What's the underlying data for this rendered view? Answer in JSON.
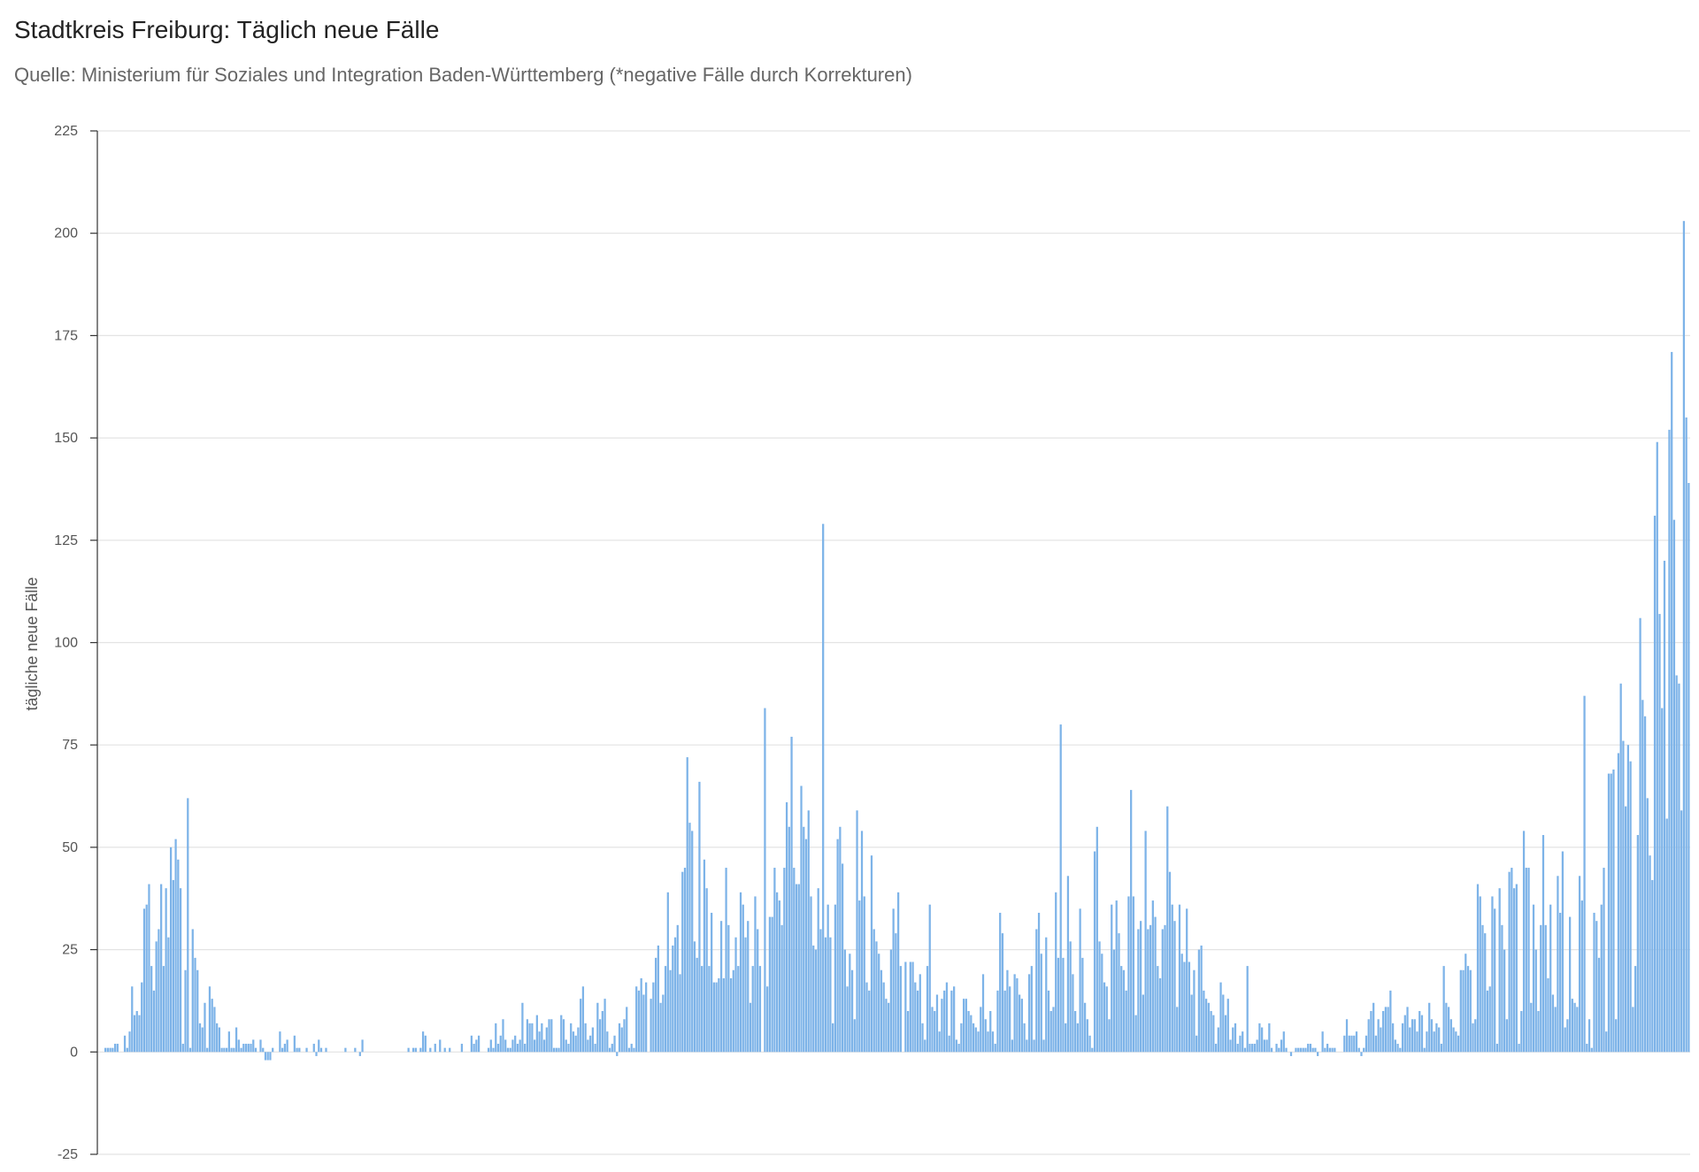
{
  "chart_data": {
    "type": "bar",
    "title": "Stadtkreis Freiburg: Täglich neue Fälle",
    "subtitle": "Quelle: Ministerium für Soziales und Integration Baden-Württemberg (*negative Fälle durch Korrekturen)",
    "ylabel": "tägliche neue Fälle",
    "xlabel": "",
    "ylim": [
      -25,
      225
    ],
    "yticks": [
      225,
      200,
      175,
      150,
      125,
      100,
      75,
      50,
      25,
      0,
      -25
    ],
    "grid": true,
    "bar_color": "#7db3e8",
    "values": [
      1,
      1,
      1,
      1,
      2,
      2,
      0,
      0,
      4,
      1,
      5,
      16,
      9,
      10,
      9,
      17,
      35,
      36,
      41,
      21,
      15,
      27,
      30,
      41,
      21,
      40,
      28,
      50,
      42,
      52,
      47,
      40,
      2,
      20,
      62,
      1,
      30,
      23,
      20,
      7,
      6,
      12,
      1,
      16,
      13,
      11,
      7,
      6,
      1,
      1,
      1,
      5,
      1,
      1,
      6,
      3,
      1,
      2,
      2,
      2,
      2,
      3,
      1,
      0,
      3,
      1,
      -2,
      -2,
      -2,
      1,
      0,
      0,
      5,
      1,
      2,
      3,
      0,
      0,
      4,
      1,
      1,
      0,
      0,
      1,
      0,
      0,
      2,
      -1,
      3,
      1,
      0,
      1,
      0,
      0,
      0,
      0,
      0,
      0,
      0,
      1,
      0,
      0,
      0,
      1,
      0,
      -1,
      3,
      0,
      0,
      0,
      0,
      0,
      0,
      0,
      0,
      0,
      0,
      0,
      0,
      0,
      0,
      0,
      0,
      0,
      0,
      1,
      0,
      1,
      1,
      0,
      1,
      5,
      4,
      0,
      1,
      0,
      2,
      0,
      3,
      0,
      1,
      0,
      1,
      0,
      0,
      0,
      0,
      2,
      0,
      0,
      0,
      4,
      2,
      3,
      4,
      0,
      0,
      0,
      1,
      3,
      1,
      7,
      2,
      4,
      8,
      3,
      1,
      1,
      3,
      4,
      2,
      3,
      12,
      2,
      8,
      7,
      7,
      3,
      9,
      5,
      7,
      3,
      6,
      8,
      8,
      1,
      1,
      1,
      9,
      8,
      3,
      2,
      7,
      5,
      4,
      6,
      13,
      16,
      7,
      3,
      4,
      6,
      2,
      12,
      8,
      10,
      13,
      5,
      1,
      2,
      4,
      -1,
      7,
      6,
      8,
      11,
      1,
      2,
      1,
      16,
      15,
      18,
      14,
      17,
      0,
      13,
      17,
      23,
      26,
      12,
      14,
      21,
      39,
      20,
      26,
      28,
      31,
      19,
      44,
      45,
      72,
      56,
      54,
      27,
      23,
      66,
      21,
      47,
      40,
      21,
      34,
      17,
      17,
      18,
      32,
      18,
      45,
      31,
      18,
      20,
      28,
      21,
      39,
      36,
      28,
      32,
      12,
      21,
      38,
      30,
      21,
      0,
      84,
      16,
      33,
      33,
      45,
      39,
      37,
      31,
      45,
      61,
      55,
      77,
      45,
      41,
      41,
      65,
      55,
      52,
      59,
      38,
      26,
      25,
      40,
      30,
      129,
      28,
      36,
      28,
      7,
      36,
      52,
      55,
      46,
      25,
      16,
      24,
      20,
      8,
      59,
      37,
      54,
      38,
      17,
      15,
      48,
      30,
      27,
      24,
      20,
      17,
      13,
      12,
      25,
      35,
      29,
      39,
      21,
      0,
      22,
      10,
      22,
      22,
      17,
      15,
      19,
      7,
      3,
      21,
      36,
      11,
      10,
      14,
      5,
      13,
      15,
      17,
      4,
      15,
      16,
      3,
      2,
      7,
      13,
      13,
      10,
      9,
      7,
      6,
      5,
      11,
      19,
      8,
      5,
      10,
      5,
      2,
      15,
      34,
      29,
      15,
      20,
      16,
      3,
      19,
      18,
      14,
      13,
      7,
      3,
      19,
      21,
      3,
      30,
      34,
      24,
      3,
      28,
      15,
      10,
      11,
      39,
      23,
      80,
      23,
      7,
      43,
      27,
      19,
      10,
      7,
      35,
      23,
      12,
      8,
      4,
      1,
      49,
      55,
      27,
      24,
      17,
      16,
      8,
      36,
      25,
      37,
      29,
      21,
      20,
      15,
      38,
      64,
      38,
      9,
      30,
      32,
      14,
      54,
      30,
      31,
      37,
      33,
      21,
      18,
      30,
      31,
      60,
      44,
      36,
      32,
      11,
      36,
      24,
      22,
      35,
      22,
      14,
      20,
      4,
      25,
      26,
      15,
      13,
      12,
      10,
      9,
      2,
      6,
      17,
      14,
      9,
      13,
      3,
      6,
      7,
      2,
      4,
      5,
      1,
      21,
      2,
      2,
      2,
      3,
      7,
      6,
      3,
      3,
      7,
      1,
      0,
      2,
      1,
      3,
      5,
      1,
      0,
      -1,
      0,
      1,
      1,
      1,
      1,
      1,
      2,
      2,
      1,
      1,
      -1,
      0,
      5,
      1,
      2,
      1,
      1,
      1,
      0,
      0,
      0,
      4,
      8,
      4,
      4,
      4,
      5,
      1,
      -1,
      1,
      4,
      8,
      10,
      12,
      4,
      8,
      6,
      10,
      11,
      11,
      15,
      7,
      3,
      2,
      1,
      7,
      9,
      11,
      6,
      8,
      8,
      5,
      10,
      9,
      1,
      5,
      12,
      8,
      5,
      7,
      6,
      2,
      21,
      12,
      11,
      8,
      6,
      5,
      4,
      20,
      20,
      24,
      21,
      20,
      7,
      8,
      41,
      38,
      31,
      29,
      15,
      16,
      38,
      35,
      2,
      40,
      31,
      25,
      8,
      44,
      45,
      40,
      41,
      2,
      10,
      54,
      45,
      45,
      12,
      36,
      25,
      10,
      31,
      53,
      31,
      18,
      36,
      14,
      11,
      43,
      34,
      49,
      6,
      8,
      33,
      13,
      12,
      11,
      43,
      37,
      87,
      2,
      8,
      1,
      34,
      32,
      23,
      36,
      45,
      5,
      68,
      68,
      69,
      8,
      73,
      90,
      76,
      60,
      75,
      71,
      11,
      21,
      53,
      106,
      86,
      82,
      62,
      48,
      42,
      131,
      149,
      107,
      84,
      120,
      57,
      152,
      171,
      130,
      92,
      90,
      59,
      203,
      155,
      139
    ]
  }
}
